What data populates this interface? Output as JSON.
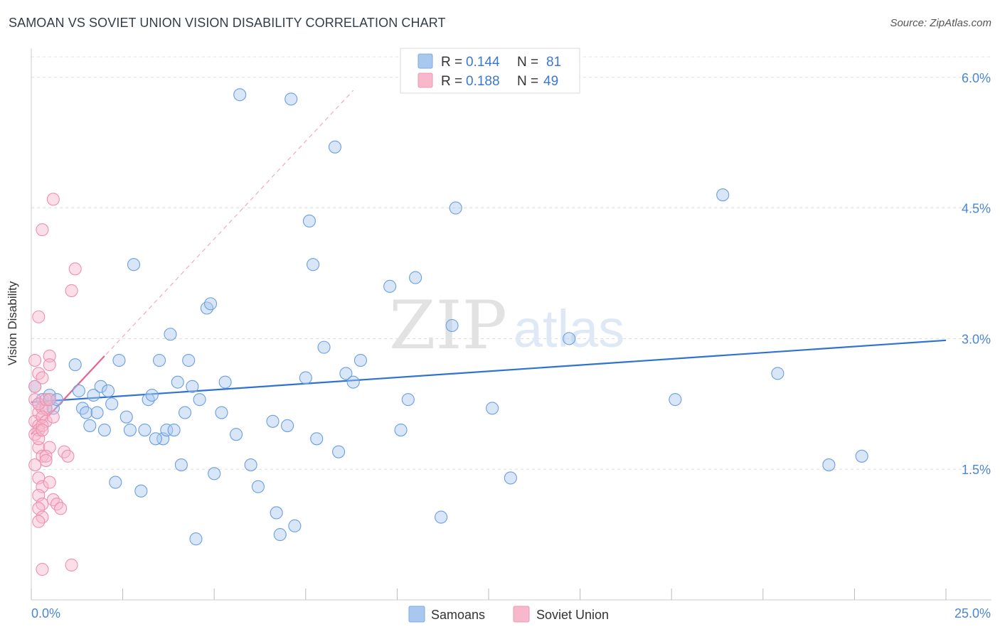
{
  "header": {
    "title": "SAMOAN VS SOVIET UNION VISION DISABILITY CORRELATION CHART",
    "source": "Source: ZipAtlas.com"
  },
  "watermark": {
    "zip": "ZIP",
    "atlas": "atlas"
  },
  "legend_top": {
    "rows": [
      {
        "r_label": "R =",
        "r_value": "0.144",
        "n_label": "N =",
        "n_value": "81",
        "color": "#a9c8f0"
      },
      {
        "r_label": "R =",
        "r_value": "0.188",
        "n_label": "N =",
        "n_value": "49",
        "color": "#f7b8cc"
      }
    ]
  },
  "chart_data": {
    "type": "scatter",
    "title": "SAMOAN VS SOVIET UNION VISION DISABILITY CORRELATION CHART",
    "xlabel": "",
    "ylabel": "Vision Disability",
    "xlim": [
      0,
      25
    ],
    "ylim": [
      0,
      6.3
    ],
    "x_tick_labels": [
      "0.0%",
      "25.0%"
    ],
    "y_ticks": [
      1.5,
      3.0,
      4.5,
      6.0
    ],
    "y_tick_labels": [
      "1.5%",
      "3.0%",
      "4.5%",
      "6.0%"
    ],
    "grid": true,
    "legend": [
      "Samoans",
      "Soviet Union"
    ],
    "series": [
      {
        "name": "Samoans",
        "color": "#6a9fe0",
        "fill": "#a9c8f0",
        "line_color": "#2e72d2",
        "trend": [
          [
            0.0,
            2.27
          ],
          [
            25.0,
            2.98
          ]
        ],
        "points": [
          [
            0.1,
            2.45
          ],
          [
            0.2,
            2.25
          ],
          [
            0.3,
            2.3
          ],
          [
            0.4,
            2.2
          ],
          [
            0.5,
            2.3
          ],
          [
            0.5,
            2.35
          ],
          [
            0.6,
            2.2
          ],
          [
            0.7,
            2.3
          ],
          [
            1.2,
            2.7
          ],
          [
            1.3,
            2.4
          ],
          [
            1.4,
            2.2
          ],
          [
            1.5,
            2.15
          ],
          [
            1.6,
            2.0
          ],
          [
            1.7,
            2.35
          ],
          [
            1.8,
            2.15
          ],
          [
            1.9,
            2.45
          ],
          [
            2.0,
            1.95
          ],
          [
            2.1,
            2.4
          ],
          [
            2.2,
            2.25
          ],
          [
            2.3,
            1.35
          ],
          [
            2.4,
            2.75
          ],
          [
            2.6,
            2.1
          ],
          [
            2.7,
            1.95
          ],
          [
            2.8,
            3.85
          ],
          [
            3.0,
            1.25
          ],
          [
            3.1,
            1.95
          ],
          [
            3.2,
            2.3
          ],
          [
            3.3,
            2.35
          ],
          [
            3.5,
            2.75
          ],
          [
            3.6,
            1.85
          ],
          [
            3.7,
            1.95
          ],
          [
            3.8,
            3.05
          ],
          [
            3.9,
            1.95
          ],
          [
            4.0,
            2.5
          ],
          [
            4.1,
            1.55
          ],
          [
            4.2,
            2.15
          ],
          [
            4.3,
            2.75
          ],
          [
            4.4,
            2.45
          ],
          [
            4.5,
            0.7
          ],
          [
            4.6,
            2.3
          ],
          [
            4.8,
            3.35
          ],
          [
            4.9,
            3.4
          ],
          [
            5.0,
            1.45
          ],
          [
            5.2,
            2.15
          ],
          [
            5.3,
            2.5
          ],
          [
            5.6,
            1.9
          ],
          [
            5.7,
            5.8
          ],
          [
            6.0,
            1.55
          ],
          [
            6.2,
            1.3
          ],
          [
            6.6,
            2.05
          ],
          [
            6.7,
            1.0
          ],
          [
            6.8,
            0.75
          ],
          [
            7.0,
            2.0
          ],
          [
            7.1,
            5.75
          ],
          [
            7.2,
            0.85
          ],
          [
            7.5,
            2.55
          ],
          [
            7.6,
            4.35
          ],
          [
            7.7,
            3.85
          ],
          [
            7.8,
            1.85
          ],
          [
            8.0,
            2.9
          ],
          [
            8.3,
            5.2
          ],
          [
            8.6,
            2.6
          ],
          [
            8.8,
            2.5
          ],
          [
            9.0,
            2.75
          ],
          [
            9.8,
            3.6
          ],
          [
            10.1,
            1.95
          ],
          [
            10.3,
            2.3
          ],
          [
            10.5,
            3.7
          ],
          [
            11.2,
            0.95
          ],
          [
            11.5,
            3.15
          ],
          [
            11.6,
            4.5
          ],
          [
            12.6,
            2.2
          ],
          [
            13.1,
            1.4
          ],
          [
            14.7,
            3.0
          ],
          [
            17.6,
            2.3
          ],
          [
            18.9,
            4.65
          ],
          [
            20.4,
            2.6
          ],
          [
            21.8,
            1.55
          ],
          [
            22.7,
            1.65
          ],
          [
            8.4,
            1.7
          ],
          [
            3.4,
            1.85
          ]
        ]
      },
      {
        "name": "Soviet Union",
        "color": "#ee8fae",
        "fill": "#f7b8cc",
        "line_color": "#e8648e",
        "trend": [
          [
            0.0,
            1.9
          ],
          [
            2.0,
            2.8
          ]
        ],
        "trend_dashed": [
          [
            0.0,
            1.9
          ],
          [
            8.8,
            5.85
          ]
        ],
        "points": [
          [
            0.1,
            2.45
          ],
          [
            0.1,
            2.3
          ],
          [
            0.2,
            2.15
          ],
          [
            0.1,
            2.05
          ],
          [
            0.2,
            2.0
          ],
          [
            0.3,
            2.2
          ],
          [
            0.2,
            1.95
          ],
          [
            0.1,
            1.9
          ],
          [
            0.2,
            1.75
          ],
          [
            0.3,
            1.65
          ],
          [
            0.1,
            1.55
          ],
          [
            0.2,
            1.4
          ],
          [
            0.3,
            1.3
          ],
          [
            0.2,
            1.2
          ],
          [
            0.3,
            1.1
          ],
          [
            0.2,
            1.05
          ],
          [
            0.3,
            0.95
          ],
          [
            0.2,
            0.9
          ],
          [
            0.3,
            0.35
          ],
          [
            0.2,
            2.6
          ],
          [
            0.1,
            2.75
          ],
          [
            0.2,
            3.25
          ],
          [
            0.3,
            4.25
          ],
          [
            0.6,
            4.6
          ],
          [
            0.5,
            2.8
          ],
          [
            0.5,
            2.7
          ],
          [
            0.4,
            2.2
          ],
          [
            0.3,
            2.1
          ],
          [
            0.4,
            2.05
          ],
          [
            0.5,
            1.75
          ],
          [
            0.4,
            1.65
          ],
          [
            0.5,
            1.35
          ],
          [
            0.6,
            1.15
          ],
          [
            0.7,
            1.1
          ],
          [
            0.8,
            1.05
          ],
          [
            0.9,
            1.7
          ],
          [
            1.0,
            1.65
          ],
          [
            1.1,
            3.55
          ],
          [
            1.2,
            3.8
          ],
          [
            1.1,
            0.4
          ],
          [
            0.3,
            2.55
          ],
          [
            0.2,
            2.25
          ],
          [
            0.4,
            2.3
          ],
          [
            0.3,
            2.0
          ],
          [
            0.2,
            1.85
          ],
          [
            0.4,
            1.6
          ],
          [
            0.5,
            2.3
          ],
          [
            0.6,
            2.1
          ],
          [
            0.3,
            1.95
          ]
        ]
      }
    ]
  },
  "legend_bottom": {
    "items": [
      {
        "label": "Samoans",
        "color": "#a9c8f0"
      },
      {
        "label": "Soviet Union",
        "color": "#f7b8cc"
      }
    ]
  }
}
